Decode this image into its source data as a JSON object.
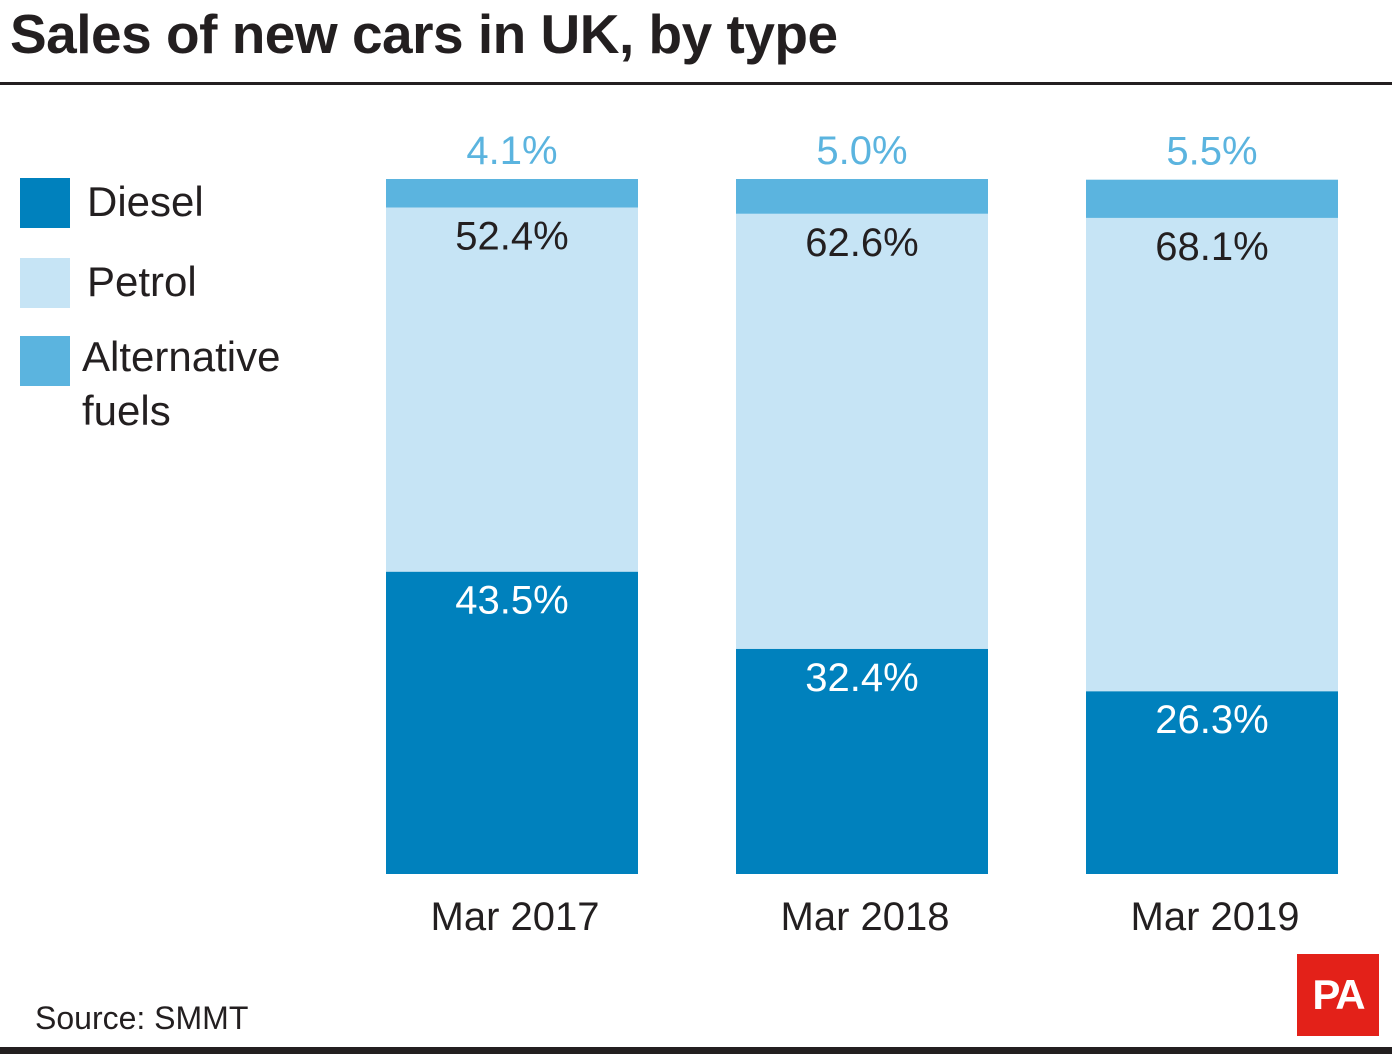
{
  "title": "Sales of new cars in UK, by type",
  "source": "Source: SMMT",
  "logo": "PA",
  "legend": [
    {
      "label": "Diesel",
      "color": "#0081bd"
    },
    {
      "label": "Petrol",
      "color": "#c6e4f5"
    },
    {
      "label": "Alternative fuels",
      "color": "#5bb4df"
    }
  ],
  "chart_data": {
    "type": "bar",
    "stacked": true,
    "title": "Sales of new cars in UK, by type",
    "categories": [
      "Mar 2017",
      "Mar 2018",
      "Mar 2019"
    ],
    "series": [
      {
        "name": "Diesel",
        "values": [
          43.5,
          32.4,
          26.3
        ],
        "labels": [
          "43.5%",
          "32.4%",
          "26.3%"
        ],
        "color": "#0081bd",
        "label_color": "#ffffff"
      },
      {
        "name": "Petrol",
        "values": [
          52.4,
          62.6,
          68.1
        ],
        "labels": [
          "52.4%",
          "62.6%",
          "68.1%"
        ],
        "color": "#c6e4f5",
        "label_color": "#231f20"
      },
      {
        "name": "Alternative fuels",
        "values": [
          4.1,
          5.0,
          5.5
        ],
        "labels": [
          "4.1%",
          "5.0%",
          "5.5%"
        ],
        "color": "#5bb4df",
        "label_color": "#5bb4df"
      }
    ],
    "xlabel": "",
    "ylabel": "",
    "ylim": [
      0,
      100
    ],
    "grid": false,
    "legend_position": "left"
  }
}
